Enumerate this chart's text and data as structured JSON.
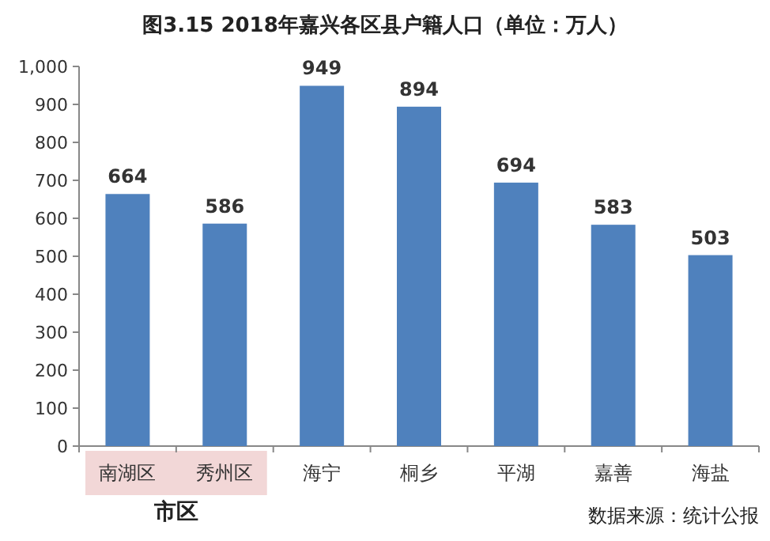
{
  "chart_data": {
    "type": "bar",
    "title": "图3.15  2018年嘉兴各区县户籍人口（单位：万人）",
    "categories": [
      "南湖区",
      "秀州区",
      "海宁",
      "桐乡",
      "平湖",
      "嘉善",
      "海盐"
    ],
    "values": [
      664,
      586,
      949,
      894,
      694,
      583,
      503
    ],
    "color": "#4f81bd",
    "ylim": [
      0,
      1000
    ],
    "yticks": [
      0,
      100,
      200,
      300,
      400,
      500,
      600,
      700,
      800,
      900,
      {
        "value": 1000,
        "label": "1,000"
      }
    ],
    "data_labels": true,
    "annotations": [
      "市区",
      "数据来源：统计公报"
    ]
  }
}
